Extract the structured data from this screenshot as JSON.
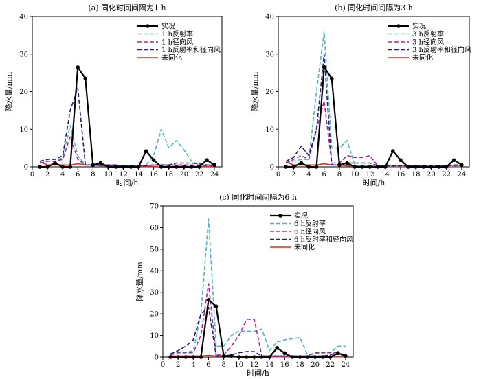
{
  "colors": {
    "obs": "#000000",
    "refl": "#4fb3c4",
    "radial": "#b0288f",
    "both": "#1f1f6b",
    "noassim": "#e8281e"
  },
  "chart_data": [
    {
      "type": "line",
      "title": "(a) 同化时间间隔为1 h",
      "xlabel": "时间/h",
      "ylabel": "降水量/mm",
      "xlim": [
        0,
        25
      ],
      "ylim": [
        0,
        40
      ],
      "xticks": [
        0,
        2,
        4,
        6,
        8,
        10,
        12,
        14,
        16,
        18,
        20,
        22,
        24
      ],
      "yticks": [
        0,
        10,
        20,
        30,
        40
      ],
      "legend_position": "top-right",
      "series": [
        {
          "name": "实况",
          "style": "obs",
          "x": [
            1,
            2,
            3,
            4,
            5,
            6,
            7,
            8,
            9,
            10,
            11,
            12,
            13,
            14,
            15,
            16,
            17,
            18,
            19,
            20,
            21,
            22,
            23,
            24
          ],
          "y": [
            0,
            0,
            1,
            0,
            0,
            26.5,
            23.5,
            0.5,
            1,
            0,
            0,
            0,
            0,
            0,
            4.2,
            1.8,
            0,
            0,
            0,
            0,
            0,
            0,
            1.8,
            0.5
          ]
        },
        {
          "name": "1 h反射率",
          "style": "refl",
          "x": [
            1,
            2,
            3,
            4,
            5,
            6,
            7,
            8,
            9,
            10,
            11,
            12,
            13,
            14,
            15,
            16,
            17,
            18,
            19,
            20,
            21,
            22,
            23,
            24
          ],
          "y": [
            1,
            1.5,
            1.5,
            2.5,
            11,
            3,
            0.5,
            0.5,
            0.5,
            0.5,
            0.5,
            0.3,
            0.3,
            0.3,
            0.5,
            3,
            10,
            5,
            7,
            4.5,
            1.5,
            0.5,
            0.5,
            0.5
          ]
        },
        {
          "name": "1 h径向风",
          "style": "radial",
          "x": [
            1,
            2,
            3,
            4,
            5,
            6,
            7,
            8,
            9,
            10,
            11,
            12,
            13,
            14,
            15,
            16,
            17,
            18,
            19,
            20,
            21,
            22,
            23,
            24
          ],
          "y": [
            1,
            1.5,
            1.5,
            2,
            8,
            2,
            0.5,
            0.5,
            0.5,
            0.5,
            0.3,
            0.3,
            0.3,
            0.3,
            0.3,
            0.5,
            0.5,
            0.5,
            0.5,
            0.5,
            0.5,
            0.3,
            0.3,
            0.3
          ]
        },
        {
          "name": "1 h反射率和径向风",
          "style": "both",
          "x": [
            1,
            2,
            3,
            4,
            5,
            6,
            7,
            8,
            9,
            10,
            11,
            12,
            13,
            14,
            15,
            16,
            17,
            18,
            19,
            20,
            21,
            22,
            23,
            24
          ],
          "y": [
            1.5,
            2,
            2,
            3,
            15,
            21,
            0.5,
            0.5,
            0.5,
            0.5,
            0.5,
            0.3,
            0.3,
            0.3,
            0.3,
            0.5,
            0.5,
            0.5,
            1,
            1,
            1,
            0.8,
            0.5,
            0.5
          ]
        },
        {
          "name": "未同化",
          "style": "noassim",
          "x": [
            1,
            2,
            3,
            4,
            5,
            6,
            7,
            8,
            9,
            10,
            11,
            12,
            13,
            14,
            15,
            16,
            17,
            18,
            19,
            20,
            21,
            22,
            23,
            24
          ],
          "y": [
            1.3,
            0.5,
            0.5,
            0.5,
            0.5,
            0.8,
            0.5,
            0.5,
            0.3,
            0.3,
            0.2,
            0.2,
            0.1,
            0.1,
            0.1,
            0.1,
            0.1,
            0.1,
            0.1,
            0.1,
            0.1,
            0.1,
            0.1,
            0.1
          ]
        }
      ]
    },
    {
      "type": "line",
      "title": "(b) 同化时间间隔为3 h",
      "xlabel": "时间/h",
      "ylabel": "降水量/mm",
      "xlim": [
        0,
        25
      ],
      "ylim": [
        0,
        40
      ],
      "xticks": [
        0,
        2,
        4,
        6,
        8,
        10,
        12,
        14,
        16,
        18,
        20,
        22,
        24
      ],
      "yticks": [
        0,
        10,
        20,
        30,
        40
      ],
      "legend_position": "top-right",
      "series": [
        {
          "name": "实况",
          "style": "obs",
          "x": [
            1,
            2,
            3,
            4,
            5,
            6,
            7,
            8,
            9,
            10,
            11,
            12,
            13,
            14,
            15,
            16,
            17,
            18,
            19,
            20,
            21,
            22,
            23,
            24
          ],
          "y": [
            0,
            0,
            1,
            0,
            0,
            26.5,
            23.5,
            0.5,
            1,
            0,
            0,
            0,
            0,
            0,
            4.2,
            1.8,
            0,
            0,
            0,
            0,
            0,
            0,
            1.8,
            0.5
          ]
        },
        {
          "name": "3 h反射率",
          "style": "refl",
          "x": [
            1,
            2,
            3,
            4,
            5,
            6,
            7,
            8,
            9,
            10,
            11,
            12,
            13,
            14,
            15,
            16,
            17,
            18,
            19,
            20,
            21,
            22,
            23,
            24
          ],
          "y": [
            1,
            1.5,
            2,
            2,
            20,
            36,
            5,
            5,
            7,
            0.5,
            0.3,
            0.3,
            0.2,
            0.2,
            0.2,
            0.2,
            0.2,
            0.2,
            0.2,
            0.2,
            0.2,
            0.2,
            0.2,
            0.2
          ]
        },
        {
          "name": "3 h径向风",
          "style": "radial",
          "x": [
            1,
            2,
            3,
            4,
            5,
            6,
            7,
            8,
            9,
            10,
            11,
            12,
            13,
            14,
            15,
            16,
            17,
            18,
            19,
            20,
            21,
            22,
            23,
            24
          ],
          "y": [
            1,
            2,
            3,
            2,
            10,
            17.5,
            1,
            1,
            3,
            2.5,
            2.5,
            3,
            0.3,
            0.3,
            0.3,
            0.3,
            0.3,
            0.3,
            0.3,
            0.3,
            0.3,
            0.3,
            0.3,
            0.3
          ]
        },
        {
          "name": "3 h反射率和径向风",
          "style": "both",
          "x": [
            1,
            2,
            3,
            4,
            5,
            6,
            7,
            8,
            9,
            10,
            11,
            12,
            13,
            14,
            15,
            16,
            17,
            18,
            19,
            20,
            21,
            22,
            23,
            24
          ],
          "y": [
            1.5,
            2.5,
            5.5,
            3,
            10,
            30,
            0.5,
            0.5,
            1,
            1,
            1,
            1,
            0.3,
            0.3,
            0.3,
            0.3,
            0.3,
            0.3,
            0.3,
            0.3,
            0.3,
            0.3,
            0.5,
            0.5
          ]
        },
        {
          "name": "未同化",
          "style": "noassim",
          "x": [
            1,
            2,
            3,
            4,
            5,
            6,
            7,
            8,
            9,
            10,
            11,
            12,
            13,
            14,
            15,
            16,
            17,
            18,
            19,
            20,
            21,
            22,
            23,
            24
          ],
          "y": [
            1.3,
            0.5,
            0.5,
            0.5,
            0.5,
            0.8,
            0.5,
            0.5,
            0.3,
            0.3,
            0.2,
            0.2,
            0.1,
            0.1,
            0.1,
            0.1,
            0.1,
            0.1,
            0.1,
            0.1,
            0.1,
            0.1,
            0.1,
            0.1
          ]
        }
      ]
    },
    {
      "type": "line",
      "title": "(c) 同化时间间隔为6 h",
      "xlabel": "时间/h",
      "ylabel": "降水量/mm",
      "xlim": [
        0,
        25
      ],
      "ylim": [
        0,
        70
      ],
      "xticks": [
        0,
        2,
        4,
        6,
        8,
        10,
        12,
        14,
        16,
        18,
        20,
        22,
        24
      ],
      "yticks": [
        0,
        10,
        20,
        30,
        40,
        50,
        60,
        70
      ],
      "legend_position": "top-right",
      "series": [
        {
          "name": "实况",
          "style": "obs",
          "x": [
            1,
            2,
            3,
            4,
            5,
            6,
            7,
            8,
            9,
            10,
            11,
            12,
            13,
            14,
            15,
            16,
            17,
            18,
            19,
            20,
            21,
            22,
            23,
            24
          ],
          "y": [
            0,
            0,
            0,
            0,
            0,
            26.5,
            23.5,
            0.5,
            0.5,
            0,
            0,
            0,
            0,
            0,
            4.2,
            1.8,
            0,
            0,
            0,
            0,
            0,
            0,
            1.8,
            0.5
          ]
        },
        {
          "name": "6 h反射率",
          "style": "refl",
          "x": [
            1,
            2,
            3,
            4,
            5,
            6,
            7,
            8,
            9,
            10,
            11,
            12,
            13,
            14,
            15,
            16,
            17,
            18,
            19,
            20,
            21,
            22,
            23,
            24
          ],
          "y": [
            1,
            2,
            2,
            3,
            20,
            64,
            5,
            5,
            10,
            12,
            12,
            12,
            13,
            3,
            7,
            8,
            8.5,
            9,
            1,
            1.5,
            2,
            2,
            5,
            5
          ]
        },
        {
          "name": "6 h径向风",
          "style": "radial",
          "x": [
            1,
            2,
            3,
            4,
            5,
            6,
            7,
            8,
            9,
            10,
            11,
            12,
            13,
            14,
            15,
            16,
            17,
            18,
            19,
            20,
            21,
            22,
            23,
            24
          ],
          "y": [
            1,
            2,
            2,
            2,
            10,
            34,
            1,
            1,
            5,
            10,
            17.5,
            17.5,
            0.5,
            0.5,
            0.5,
            0.5,
            0.5,
            0.5,
            0.5,
            2,
            2,
            2,
            2,
            0.5
          ]
        },
        {
          "name": "6 h反射率和径向风",
          "style": "both",
          "x": [
            1,
            2,
            3,
            4,
            5,
            6,
            7,
            8,
            9,
            10,
            11,
            12,
            13,
            14,
            15,
            16,
            17,
            18,
            19,
            20,
            21,
            22,
            23,
            24
          ],
          "y": [
            1.5,
            3,
            5,
            8,
            20,
            23,
            0.5,
            0.5,
            1,
            2,
            2.5,
            2.5,
            0.5,
            0.5,
            0.5,
            0.5,
            0.5,
            0.5,
            0.5,
            0.5,
            0.5,
            1,
            2.5,
            0.5
          ]
        },
        {
          "name": "未同化",
          "style": "noassim",
          "x": [
            1,
            2,
            3,
            4,
            5,
            6,
            7,
            8,
            9,
            10,
            11,
            12,
            13,
            14,
            15,
            16,
            17,
            18,
            19,
            20,
            21,
            22,
            23,
            24
          ],
          "y": [
            0.5,
            0.5,
            0.5,
            0.5,
            0.5,
            0.8,
            0.5,
            0.5,
            0.3,
            0.3,
            0.2,
            0.2,
            0.1,
            0.1,
            0.1,
            0.1,
            0.1,
            0.1,
            0.1,
            0.1,
            0.1,
            0.1,
            0.1,
            0.1
          ]
        }
      ]
    }
  ]
}
